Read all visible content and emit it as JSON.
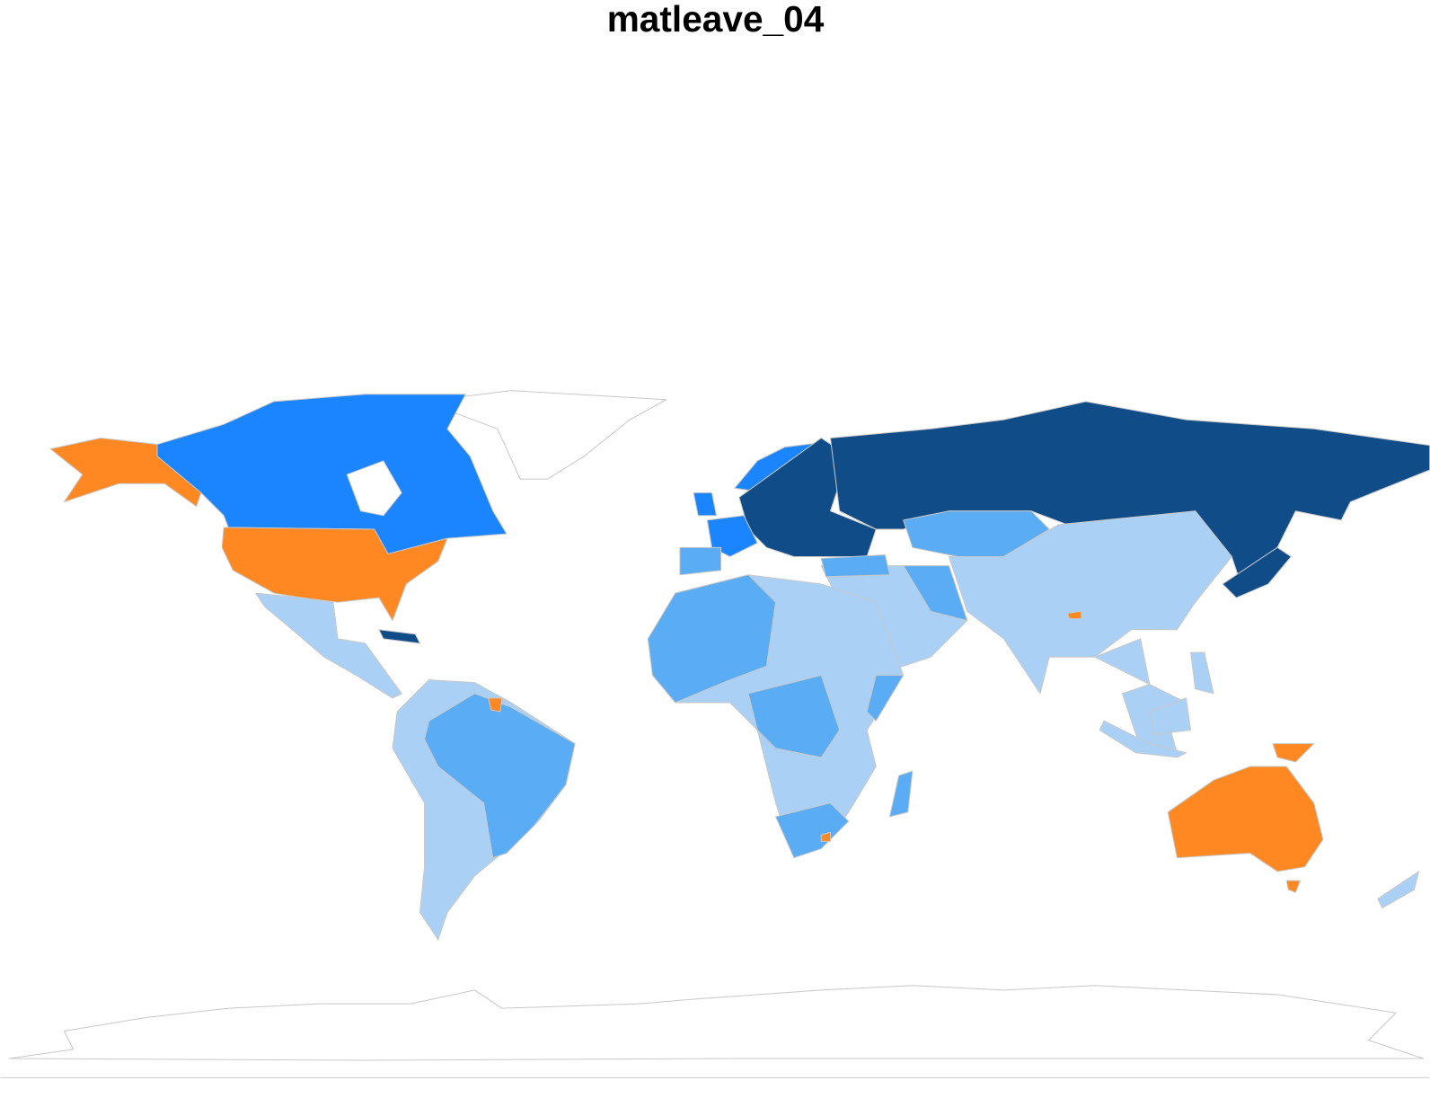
{
  "title": "matleave_04"
}
